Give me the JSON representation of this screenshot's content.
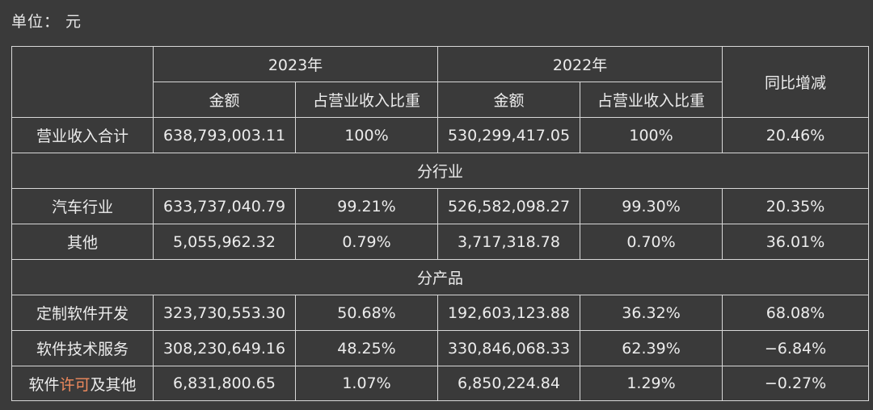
{
  "unit_label": "单位： 元",
  "header": {
    "year_2023": "2023年",
    "year_2022": "2022年",
    "amount": "金额",
    "share": "占营业收入比重",
    "yoy": "同比增减"
  },
  "total_row": {
    "label": "营业收入合计",
    "amount_2023": "638,793,003.11",
    "share_2023": "100%",
    "amount_2022": "530,299,417.05",
    "share_2022": "100%",
    "yoy": "20.46%"
  },
  "section_industry": "分行业",
  "industry_rows": [
    {
      "label": "汽车行业",
      "amount_2023": "633,737,040.79",
      "share_2023": "99.21%",
      "amount_2022": "526,582,098.27",
      "share_2022": "99.30%",
      "yoy": "20.35%"
    },
    {
      "label": "其他",
      "amount_2023": "5,055,962.32",
      "share_2023": "0.79%",
      "amount_2022": "3,717,318.78",
      "share_2022": "0.70%",
      "yoy": "36.01%"
    }
  ],
  "section_product": "分产品",
  "product_rows": [
    {
      "label": "定制软件开发",
      "amount_2023": "323,730,553.30",
      "share_2023": "50.68%",
      "amount_2022": "192,603,123.88",
      "share_2022": "36.32%",
      "yoy": "68.08%"
    },
    {
      "label": "软件技术服务",
      "amount_2023": "308,230,649.16",
      "share_2023": "48.25%",
      "amount_2022": "330,846,068.33",
      "share_2022": "62.39%",
      "yoy": "−6.84%"
    },
    {
      "label_prefix": "软件",
      "label_highlight": "许可",
      "label_suffix": "及其他",
      "amount_2023": "6,831,800.65",
      "share_2023": "1.07%",
      "amount_2022": "6,850,224.84",
      "share_2022": "1.29%",
      "yoy": "−0.27%"
    }
  ],
  "colors": {
    "background": "#3a3a3a",
    "text": "#ececec",
    "border": "#d8d8d8",
    "highlight": "#f08a5d"
  }
}
